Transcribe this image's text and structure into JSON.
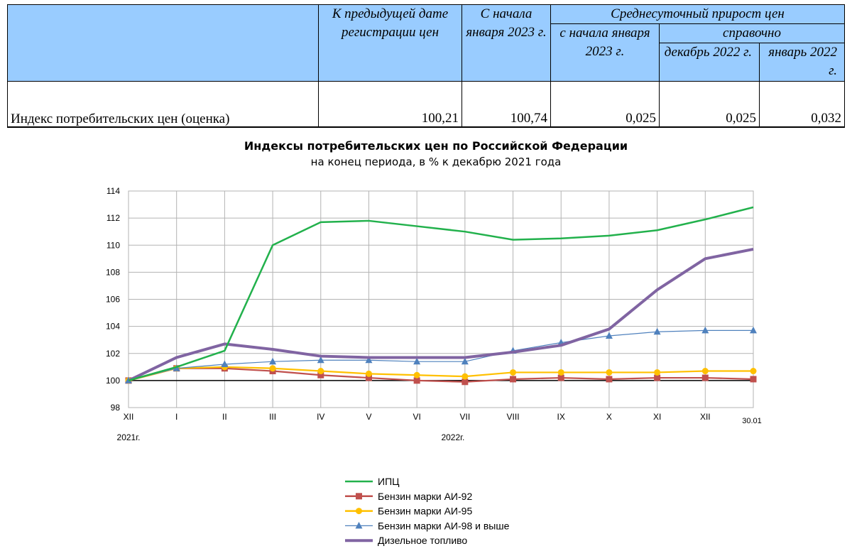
{
  "table": {
    "headers": {
      "prev_date": "К предыдущей дате регистрации цен",
      "since_jan": "С начала января 2023 г.",
      "avg_daily_group": "Среднесуточный прирост цен",
      "avg_since_jan": "с начала января 2023 г.",
      "reference": "справочно",
      "dec_2022": "декабрь 2022 г.",
      "jan_2022": "январь 2022 г."
    },
    "row": {
      "label": "Индекс потребительских цен (оценка)",
      "prev_date": "100,21",
      "since_jan": "100,74",
      "avg_since_jan": "0,025",
      "dec_2022": "0,025",
      "jan_2022": "0,032"
    }
  },
  "chart_data": {
    "type": "line",
    "title": "Индексы потребительских цен по Российской Федерации",
    "subtitle": "на конец периода, в % к декабрю 2021 года",
    "categories": [
      "XII",
      "I",
      "II",
      "III",
      "IV",
      "V",
      "VI",
      "VII",
      "VIII",
      "IX",
      "X",
      "XI",
      "XII",
      "30.01"
    ],
    "year_labels": [
      "2021г.",
      "2022г."
    ],
    "ylim": [
      98,
      114
    ],
    "yticks": [
      98,
      100,
      102,
      104,
      106,
      108,
      110,
      112,
      114
    ],
    "grid": true,
    "baseline": 100,
    "legend_position": "bottom",
    "series": [
      {
        "name": "ИПЦ",
        "color": "#22b14c",
        "marker": "none",
        "values": [
          100.0,
          101.0,
          102.2,
          110.0,
          111.7,
          111.8,
          111.4,
          111.0,
          110.4,
          110.5,
          110.7,
          111.1,
          111.9,
          112.8
        ]
      },
      {
        "name": "Бензин марки АИ-92",
        "color": "#c0504d",
        "marker": "square",
        "values": [
          100.0,
          100.9,
          100.9,
          100.7,
          100.4,
          100.2,
          100.0,
          99.9,
          100.1,
          100.2,
          100.1,
          100.2,
          100.2,
          100.1
        ]
      },
      {
        "name": "Бензин марки АИ-95",
        "color": "#ffc000",
        "marker": "circle",
        "values": [
          100.0,
          100.9,
          101.0,
          100.9,
          100.7,
          100.5,
          100.4,
          100.3,
          100.6,
          100.6,
          100.6,
          100.6,
          100.7,
          100.7
        ]
      },
      {
        "name": "Бензин марки АИ-98 и  выше",
        "color": "#4f81bd",
        "marker": "triangle",
        "values": [
          100.0,
          100.9,
          101.2,
          101.4,
          101.5,
          101.5,
          101.4,
          101.4,
          102.2,
          102.8,
          103.3,
          103.6,
          103.7,
          103.7
        ]
      },
      {
        "name": "Дизельное топливо",
        "color": "#8064a2",
        "marker": "none",
        "values": [
          100.0,
          101.7,
          102.7,
          102.3,
          101.8,
          101.7,
          101.7,
          101.7,
          102.1,
          102.6,
          103.8,
          106.7,
          109.0,
          109.7
        ]
      }
    ]
  }
}
